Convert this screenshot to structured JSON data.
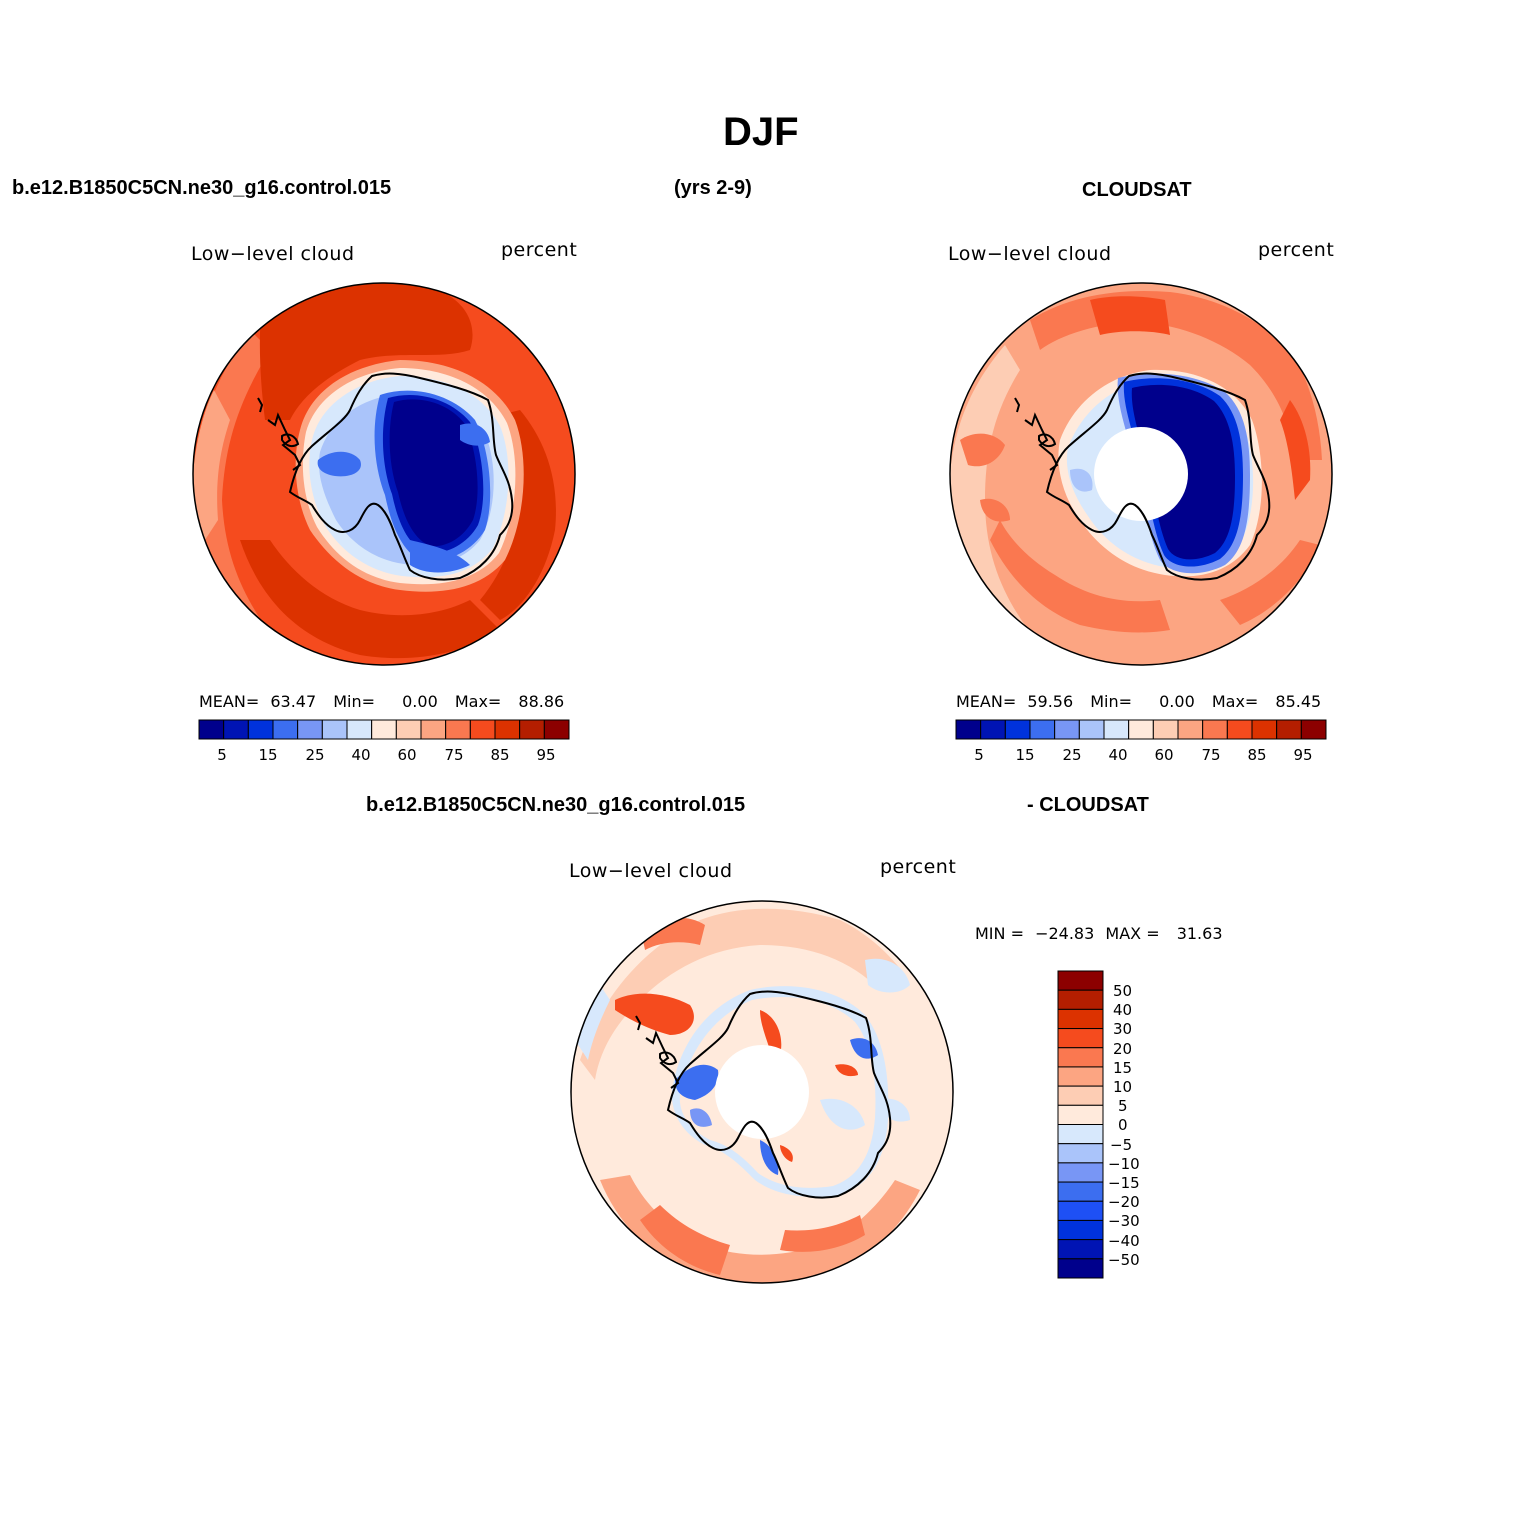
{
  "page": {
    "title": "DJF",
    "case_name": "b.e12.B1850C5CN.ne30_g16.control.015",
    "years": "(yrs 2-9)",
    "obs_name": "CLOUDSAT",
    "diff_case_name": "b.e12.B1850C5CN.ne30_g16.control.015",
    "diff_obs_name": "- CLOUDSAT"
  },
  "panels": [
    {
      "id": "model",
      "variable_label": "Low−level cloud",
      "units": "percent",
      "stats": {
        "mean_label": "MEAN=",
        "mean": "63.47",
        "min_label": "Min=",
        "min": "0.00",
        "max_label": "Max=",
        "max": "88.86"
      },
      "colorbar_labels": [
        "5",
        "15",
        "25",
        "40",
        "60",
        "75",
        "85",
        "95"
      ]
    },
    {
      "id": "obs",
      "variable_label": "Low−level cloud",
      "units": "percent",
      "stats": {
        "mean_label": "MEAN=",
        "mean": "59.56",
        "min_label": "Min=",
        "min": "0.00",
        "max_label": "Max=",
        "max": "85.45"
      },
      "colorbar_labels": [
        "5",
        "15",
        "25",
        "40",
        "60",
        "75",
        "85",
        "95"
      ]
    },
    {
      "id": "diff",
      "variable_label": "Low−level cloud",
      "units": "percent",
      "stats": {
        "min_label": "MIN =",
        "min": "−24.83",
        "max_label": "MAX =",
        "max": "31.63"
      },
      "colorbar_labels": [
        "50",
        "40",
        "30",
        "20",
        "15",
        "10",
        "5",
        "0",
        "−5",
        "−10",
        "−15",
        "−20",
        "−30",
        "−40",
        "−50"
      ]
    }
  ],
  "colors": {
    "abs_scale": [
      "#00008c",
      "#0014b4",
      "#0032dc",
      "#3c6ef0",
      "#7896f5",
      "#aac4fa",
      "#d7e8fc",
      "#ffeadc",
      "#fdcdb4",
      "#fca582",
      "#fa7850",
      "#f54b1e",
      "#dc3200",
      "#b41e00",
      "#8c0000"
    ],
    "diff_scale": [
      "#8c0000",
      "#b41e00",
      "#dc3200",
      "#f54b1e",
      "#fa7850",
      "#fca582",
      "#fdcdb4",
      "#ffeadc",
      "#d7e8fc",
      "#aac4fa",
      "#7896f5",
      "#3c6ef0",
      "#1e50f5",
      "#0032dc",
      "#0014b4",
      "#00008c"
    ]
  }
}
